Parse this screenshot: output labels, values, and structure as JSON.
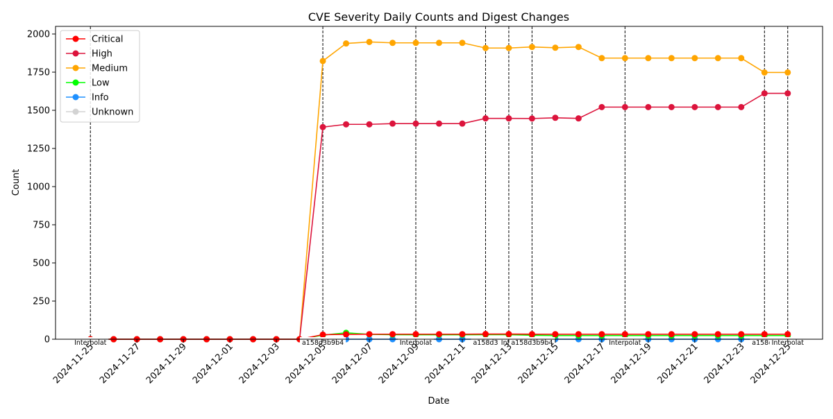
{
  "chart_data": {
    "type": "line",
    "title": "CVE Severity Daily Counts and Digest Changes",
    "xlabel": "Date",
    "ylabel": "Count",
    "ylim": [
      0,
      2050
    ],
    "y_ticks": [
      0,
      250,
      500,
      750,
      1000,
      1250,
      1500,
      1750,
      2000
    ],
    "x_start": "2024-11-25",
    "x_end": "2024-12-25",
    "x_tick_labels": [
      "2024-11-25",
      "2024-11-27",
      "2024-11-29",
      "2024-12-01",
      "2024-12-03",
      "2024-12-05",
      "2024-12-07",
      "2024-12-09",
      "2024-12-11",
      "2024-12-13",
      "2024-12-15",
      "2024-12-17",
      "2024-12-19",
      "2024-12-21",
      "2024-12-23",
      "2024-12-25"
    ],
    "legend_position": "top-left",
    "grid": false,
    "x": [
      "2024-11-25",
      "2024-11-26",
      "2024-11-27",
      "2024-11-28",
      "2024-11-29",
      "2024-11-30",
      "2024-12-01",
      "2024-12-02",
      "2024-12-03",
      "2024-12-04",
      "2024-12-05",
      "2024-12-06",
      "2024-12-07",
      "2024-12-08",
      "2024-12-09",
      "2024-12-10",
      "2024-12-11",
      "2024-12-12",
      "2024-12-13",
      "2024-12-14",
      "2024-12-15",
      "2024-12-16",
      "2024-12-17",
      "2024-12-18",
      "2024-12-19",
      "2024-12-20",
      "2024-12-21",
      "2024-12-22",
      "2024-12-23",
      "2024-12-24",
      "2024-12-25"
    ],
    "series": [
      {
        "name": "Critical",
        "color": "#ff0000",
        "values": [
          0,
          0,
          0,
          0,
          0,
          0,
          0,
          0,
          0,
          0,
          30,
          32,
          33,
          33,
          33,
          33,
          33,
          34,
          34,
          33,
          33,
          33,
          33,
          33,
          33,
          33,
          33,
          33,
          33,
          33,
          33
        ]
      },
      {
        "name": "High",
        "color": "#dc143c",
        "values": [
          0,
          0,
          0,
          0,
          0,
          0,
          0,
          0,
          0,
          0,
          1390,
          1408,
          1408,
          1413,
          1413,
          1413,
          1413,
          1447,
          1447,
          1446,
          1451,
          1447,
          1521,
          1521,
          1521,
          1521,
          1521,
          1521,
          1521,
          1611,
          1611
        ]
      },
      {
        "name": "Medium",
        "color": "#ffa500",
        "values": [
          0,
          0,
          0,
          0,
          0,
          0,
          0,
          0,
          0,
          0,
          1823,
          1938,
          1948,
          1942,
          1942,
          1942,
          1942,
          1908,
          1908,
          1915,
          1910,
          1915,
          1842,
          1842,
          1842,
          1842,
          1842,
          1842,
          1842,
          1748,
          1748
        ]
      },
      {
        "name": "Low",
        "color": "#00ff00",
        "values": [
          0,
          0,
          0,
          0,
          0,
          0,
          0,
          0,
          0,
          0,
          27,
          42,
          32,
          30,
          29,
          29,
          29,
          30,
          30,
          26,
          24,
          24,
          24,
          24,
          24,
          24,
          24,
          24,
          24,
          24,
          24
        ]
      },
      {
        "name": "Info",
        "color": "#1e90ff",
        "values": [
          0,
          0,
          0,
          0,
          0,
          0,
          0,
          0,
          0,
          0,
          0,
          0,
          0,
          0,
          0,
          0,
          0,
          0,
          0,
          0,
          0,
          0,
          0,
          0,
          0,
          0,
          0,
          0,
          0,
          0,
          0
        ]
      },
      {
        "name": "Unknown",
        "color": "#d3d3d3",
        "values": [
          0,
          0,
          0,
          0,
          0,
          0,
          0,
          0,
          0,
          0,
          0,
          0,
          0,
          0,
          0,
          0,
          0,
          0,
          0,
          0,
          0,
          0,
          0,
          0,
          0,
          0,
          0,
          0,
          0,
          0,
          0
        ]
      }
    ],
    "annotations": [
      {
        "date": "2024-11-25",
        "text": "Interpolat"
      },
      {
        "date": "2024-12-05",
        "text": "a158d3b9b4"
      },
      {
        "date": "2024-12-09",
        "text": "Interpolat"
      },
      {
        "date": "2024-12-12",
        "text": "a158d3"
      },
      {
        "date": "2024-12-13",
        "text": "Inter"
      },
      {
        "date": "2024-12-14",
        "text": "a158d3b9b4"
      },
      {
        "date": "2024-12-18",
        "text": "Interpolat"
      },
      {
        "date": "2024-12-24",
        "text": "a158d3"
      },
      {
        "date": "2024-12-25",
        "text": "Interpolat"
      }
    ]
  }
}
